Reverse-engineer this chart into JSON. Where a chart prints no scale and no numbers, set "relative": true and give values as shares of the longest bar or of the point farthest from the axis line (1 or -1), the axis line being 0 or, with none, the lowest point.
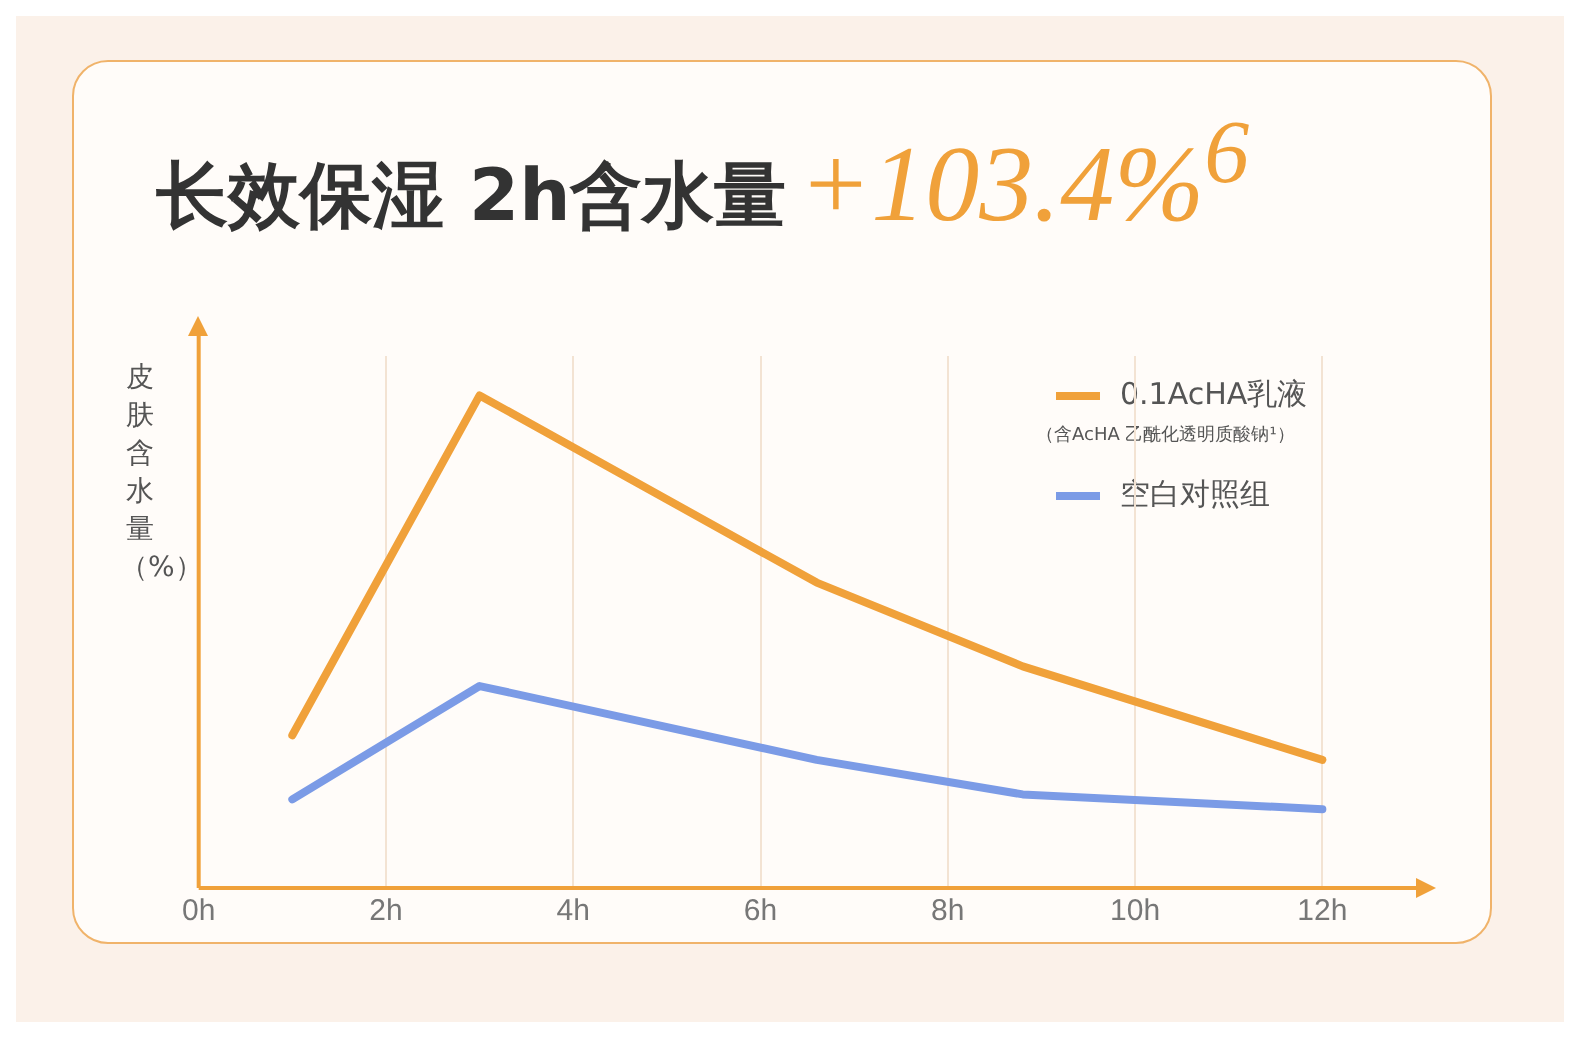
{
  "chart_data": {
    "type": "line",
    "title": "长效保湿 2h含水量",
    "subtitle": "+103.4%$^{6}$",
    "ylabel": "皮肤含水量（%）",
    "relative": true,
    "xlim": [
      0,
      13
    ],
    "xticks": [
      {
        "value": 0,
        "label": "0h"
      },
      {
        "value": 2,
        "label": "2h"
      },
      {
        "value": 4,
        "label": "4h"
      },
      {
        "value": 6,
        "label": "6h"
      },
      {
        "value": 8,
        "label": "8h"
      },
      {
        "value": 10,
        "label": "10h"
      },
      {
        "value": 12,
        "label": "12h"
      }
    ],
    "series": [
      {
        "name": "0.1AcHA乳液",
        "color": "#f0a13a",
        "x": [
          1,
          3,
          6.6,
          8.8,
          12
        ],
        "values": [
          0.31,
          1,
          0.62,
          0.45,
          0.26
        ]
      },
      {
        "name": "空白对照组",
        "color": "#7b9be6",
        "x": [
          1,
          3,
          6.6,
          8.8,
          12
        ],
        "values": [
          0.18,
          0.41,
          0.26,
          0.19,
          0.16
        ]
      }
    ],
    "annotations": [
      "（含AcHA 乙酰化透明质酸钠¹）"
    ],
    "legend": "top right",
    "grid": true
  }
}
